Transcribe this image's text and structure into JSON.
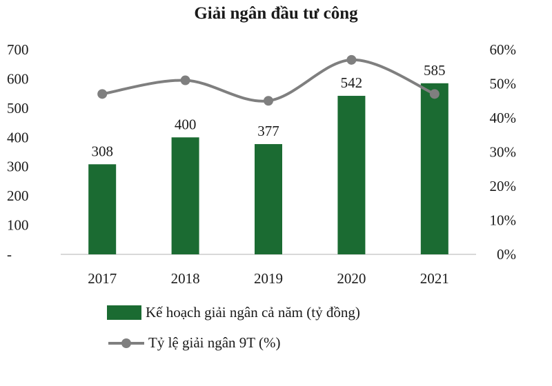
{
  "chart_data": {
    "type": "bar",
    "title": "Giải ngân đầu tư công",
    "categories": [
      "2017",
      "2018",
      "2019",
      "2020",
      "2021"
    ],
    "series": [
      {
        "name": "Kế hoạch giải ngân cả năm (tỷ đồng)",
        "type": "bar",
        "axis": "left",
        "color": "#1b6b32",
        "values": [
          308,
          400,
          377,
          542,
          585
        ],
        "data_labels": [
          "308",
          "400",
          "377",
          "542",
          "585"
        ]
      },
      {
        "name": "Tỷ lệ giải ngân 9T (%)",
        "type": "line",
        "axis": "right",
        "color": "#7f7f7f",
        "values": [
          47,
          51,
          45,
          57,
          47
        ]
      }
    ],
    "y_left": {
      "ylim": [
        0,
        700
      ],
      "ticks": [
        0,
        100,
        200,
        300,
        400,
        500,
        600,
        700
      ],
      "tick_labels": [
        "-",
        "100",
        "200",
        "300",
        "400",
        "500",
        "600",
        "700"
      ]
    },
    "y_right": {
      "ylim": [
        0,
        60
      ],
      "ticks": [
        0,
        10,
        20,
        30,
        40,
        50,
        60
      ],
      "tick_labels": [
        "0%",
        "10%",
        "20%",
        "30%",
        "40%",
        "50%",
        "60%"
      ]
    },
    "grid": false,
    "legend_position": "bottom-left"
  }
}
